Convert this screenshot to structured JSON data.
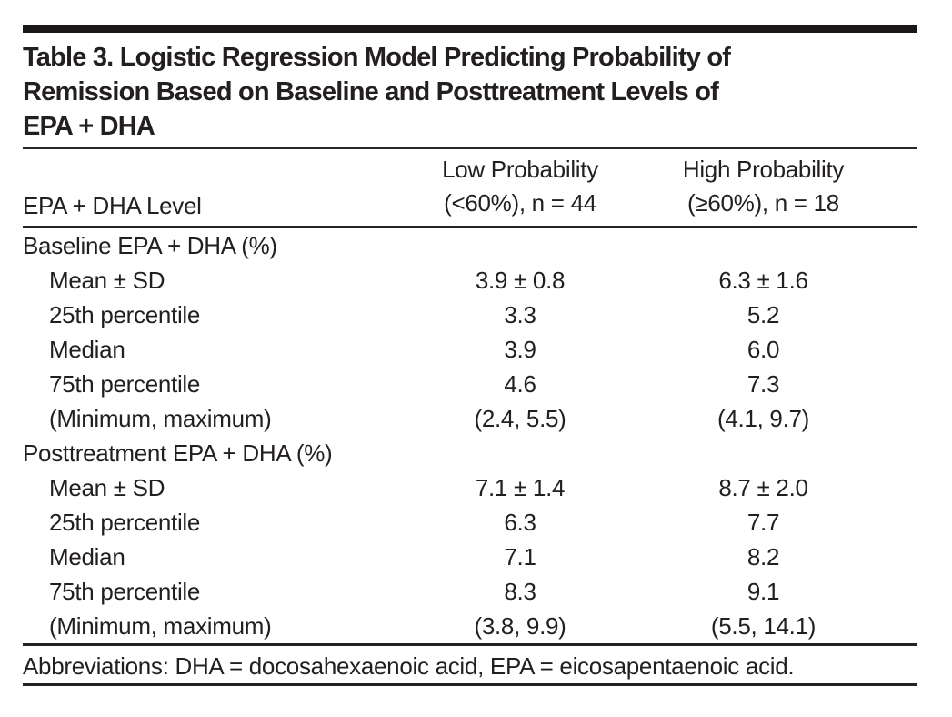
{
  "table": {
    "title_lines": [
      "Table 3. Logistic Regression Model Predicting Probability of",
      "Remission Based on Baseline and Posttreatment Levels of",
      "EPA + DHA"
    ],
    "columns": {
      "row_header": "EPA + DHA Level",
      "low": {
        "line1": "Low Probability",
        "line2": "(<60%), n = 44"
      },
      "high": {
        "line1": "High Probability",
        "line2": "(≥60%), n = 18"
      }
    },
    "rows": [
      {
        "label": "Baseline EPA + DHA (%)",
        "low": "",
        "high": ""
      },
      {
        "label": "Mean ± SD",
        "low": "3.9 ± 0.8",
        "high": "6.3 ± 1.6"
      },
      {
        "label": "25th percentile",
        "low": "3.3",
        "high": "5.2"
      },
      {
        "label": "Median",
        "low": "3.9",
        "high": "6.0"
      },
      {
        "label": "75th percentile",
        "low": "4.6",
        "high": "7.3"
      },
      {
        "label": "(Minimum, maximum)",
        "low": "(2.4, 5.5)",
        "high": "(4.1, 9.7)"
      },
      {
        "label": "Posttreatment EPA + DHA (%)",
        "low": "",
        "high": ""
      },
      {
        "label": "Mean ± SD",
        "low": "7.1 ± 1.4",
        "high": "8.7 ± 2.0"
      },
      {
        "label": "25th percentile",
        "low": "6.3",
        "high": "7.7"
      },
      {
        "label": "Median",
        "low": "7.1",
        "high": "8.2"
      },
      {
        "label": "75th percentile",
        "low": "8.3",
        "high": "9.1"
      },
      {
        "label": "(Minimum, maximum)",
        "low": "(3.8, 9.9)",
        "high": "(5.5, 14.1)"
      }
    ],
    "footnote": "Abbreviations: DHA = docosahexaenoic acid, EPA = eicosapentaenoic acid.",
    "colors": {
      "text": "#231f20",
      "rule": "#242223",
      "top_bar": "#191717",
      "background": "#ffffff"
    }
  }
}
